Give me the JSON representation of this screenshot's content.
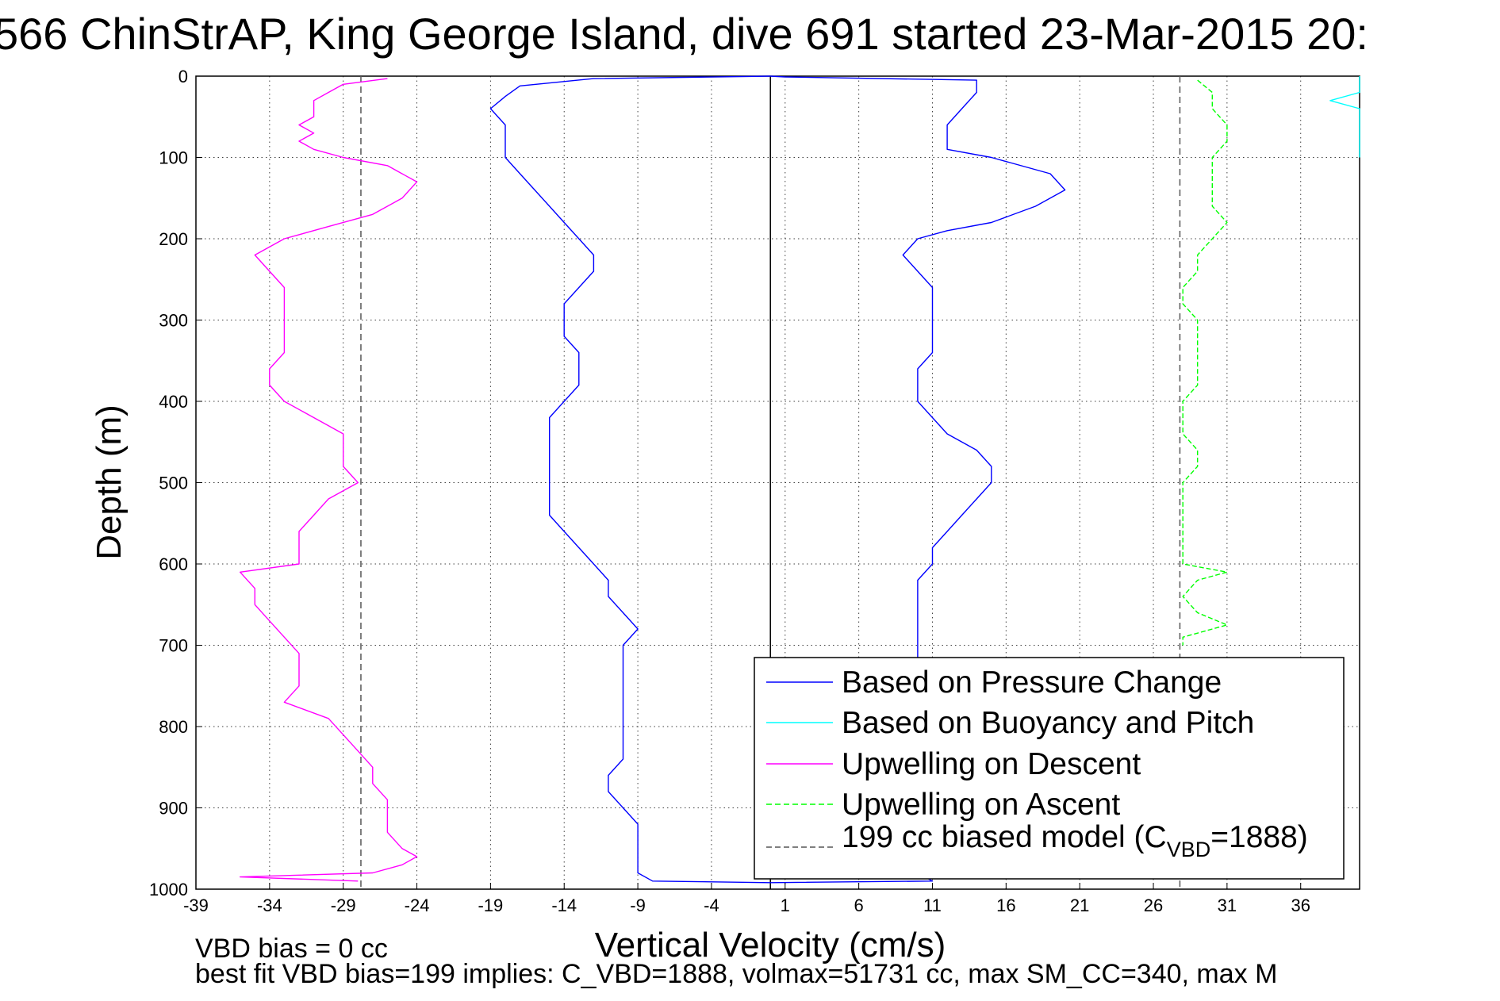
{
  "title": "566 ChinStrAP, King George Island, dive 691 started 23-Mar-2015 20:",
  "xlabel": "Vertical Velocity (cm/s)",
  "ylabel": "Depth (m)",
  "footer": {
    "line1": "VBD bias = 0 cc",
    "line2": "best fit VBD bias=199 implies: C_VBD=1888, volmax=51731 cc, max SM_CC=340, max M"
  },
  "legend": {
    "placement": "lower-right",
    "entries": [
      {
        "key": "pressure",
        "label": "Based on Pressure Change",
        "color": "#0000ff",
        "dash": "solid"
      },
      {
        "key": "buoyancy",
        "label": "Based on Buoyancy and Pitch",
        "color": "#00ffff",
        "dash": "solid"
      },
      {
        "key": "descent",
        "label": "Upwelling on Descent",
        "color": "#ff00ff",
        "dash": "solid"
      },
      {
        "key": "ascent",
        "label": "Upwelling on Ascent",
        "color": "#00ff00",
        "dash": "dashed"
      },
      {
        "key": "model",
        "label_main": "199 cc biased model (C",
        "label_sub": "VBD",
        "label_tail": "=1888)",
        "color": "#555555",
        "dash": "dashed"
      }
    ]
  },
  "chart_data": {
    "type": "line",
    "title": "566 ChinStrAP, King George Island, dive 691 started 23-Mar-2015 20:",
    "xlabel": "Vertical Velocity (cm/s)",
    "ylabel": "Depth (m)",
    "xlim": [
      -39,
      40
    ],
    "ylim": [
      1000,
      0
    ],
    "y_reversed": true,
    "grid": true,
    "x_ticks": [
      -39,
      -34,
      -29,
      -24,
      -19,
      -14,
      -9,
      -4,
      1,
      6,
      11,
      16,
      21,
      26,
      31,
      36
    ],
    "y_ticks": [
      0,
      100,
      200,
      300,
      400,
      500,
      600,
      700,
      800,
      900,
      1000
    ],
    "reference_lines": [
      {
        "x": 0,
        "color": "#000000",
        "style": "solid"
      },
      {
        "x": -27.8,
        "color": "#555555",
        "style": "dashed"
      },
      {
        "x": 27.8,
        "color": "#555555",
        "style": "dashed"
      }
    ],
    "series": [
      {
        "name": "Based on Pressure Change",
        "segment": "descent",
        "color": "#0000ff",
        "points": [
          [
            0,
            0
          ],
          [
            -12,
            3
          ],
          [
            -17,
            12
          ],
          [
            -18,
            25
          ],
          [
            -19,
            40
          ],
          [
            -18,
            60
          ],
          [
            -18,
            80
          ],
          [
            -18,
            100
          ],
          [
            -17,
            120
          ],
          [
            -16,
            140
          ],
          [
            -15,
            160
          ],
          [
            -14,
            180
          ],
          [
            -13,
            200
          ],
          [
            -12,
            220
          ],
          [
            -12,
            240
          ],
          [
            -13,
            260
          ],
          [
            -14,
            280
          ],
          [
            -14,
            300
          ],
          [
            -14,
            320
          ],
          [
            -13,
            340
          ],
          [
            -13,
            360
          ],
          [
            -13,
            380
          ],
          [
            -14,
            400
          ],
          [
            -15,
            420
          ],
          [
            -15,
            440
          ],
          [
            -15,
            460
          ],
          [
            -15,
            480
          ],
          [
            -15,
            500
          ],
          [
            -15,
            520
          ],
          [
            -15,
            540
          ],
          [
            -14,
            560
          ],
          [
            -13,
            580
          ],
          [
            -12,
            600
          ],
          [
            -11,
            620
          ],
          [
            -11,
            640
          ],
          [
            -10,
            660
          ],
          [
            -9,
            680
          ],
          [
            -10,
            700
          ],
          [
            -10,
            720
          ],
          [
            -10,
            740
          ],
          [
            -10,
            760
          ],
          [
            -10,
            780
          ],
          [
            -10,
            800
          ],
          [
            -10,
            820
          ],
          [
            -10,
            840
          ],
          [
            -11,
            860
          ],
          [
            -11,
            880
          ],
          [
            -10,
            900
          ],
          [
            -9,
            920
          ],
          [
            -9,
            940
          ],
          [
            -9,
            960
          ],
          [
            -9,
            980
          ],
          [
            -8,
            990
          ],
          [
            0,
            992
          ]
        ]
      },
      {
        "name": "Based on Pressure Change",
        "segment": "ascent",
        "color": "#0000ff",
        "points": [
          [
            0,
            992
          ],
          [
            11,
            990
          ],
          [
            10,
            980
          ],
          [
            10,
            960
          ],
          [
            10,
            940
          ],
          [
            10,
            920
          ],
          [
            10,
            900
          ],
          [
            10,
            880
          ],
          [
            10,
            860
          ],
          [
            10,
            840
          ],
          [
            10,
            820
          ],
          [
            10,
            800
          ],
          [
            10,
            780
          ],
          [
            10,
            760
          ],
          [
            10,
            740
          ],
          [
            10,
            720
          ],
          [
            10,
            700
          ],
          [
            10,
            680
          ],
          [
            10,
            660
          ],
          [
            10,
            640
          ],
          [
            10,
            620
          ],
          [
            11,
            600
          ],
          [
            11,
            580
          ],
          [
            12,
            560
          ],
          [
            13,
            540
          ],
          [
            14,
            520
          ],
          [
            15,
            500
          ],
          [
            15,
            480
          ],
          [
            14,
            460
          ],
          [
            12,
            440
          ],
          [
            11,
            420
          ],
          [
            10,
            400
          ],
          [
            10,
            380
          ],
          [
            10,
            360
          ],
          [
            11,
            340
          ],
          [
            11,
            320
          ],
          [
            11,
            300
          ],
          [
            11,
            280
          ],
          [
            11,
            260
          ],
          [
            10,
            240
          ],
          [
            9,
            220
          ],
          [
            10,
            200
          ],
          [
            12,
            190
          ],
          [
            15,
            180
          ],
          [
            18,
            160
          ],
          [
            20,
            140
          ],
          [
            19,
            120
          ],
          [
            15,
            100
          ],
          [
            12,
            90
          ],
          [
            12,
            80
          ],
          [
            12,
            60
          ],
          [
            13,
            40
          ],
          [
            14,
            20
          ],
          [
            14,
            5
          ],
          [
            1,
            1
          ],
          [
            0,
            0
          ]
        ]
      },
      {
        "name": "Upwelling on Descent",
        "color": "#ff00ff",
        "points": [
          [
            -26,
            3
          ],
          [
            -29,
            10
          ],
          [
            -30,
            20
          ],
          [
            -31,
            30
          ],
          [
            -31,
            40
          ],
          [
            -31,
            50
          ],
          [
            -32,
            60
          ],
          [
            -31,
            70
          ],
          [
            -32,
            80
          ],
          [
            -31,
            90
          ],
          [
            -29,
            100
          ],
          [
            -26,
            110
          ],
          [
            -24,
            130
          ],
          [
            -25,
            150
          ],
          [
            -27,
            170
          ],
          [
            -30,
            185
          ],
          [
            -33,
            200
          ],
          [
            -35,
            220
          ],
          [
            -34,
            240
          ],
          [
            -33,
            260
          ],
          [
            -33,
            280
          ],
          [
            -33,
            300
          ],
          [
            -33,
            320
          ],
          [
            -33,
            340
          ],
          [
            -34,
            360
          ],
          [
            -34,
            380
          ],
          [
            -33,
            400
          ],
          [
            -31,
            420
          ],
          [
            -29,
            440
          ],
          [
            -29,
            460
          ],
          [
            -29,
            480
          ],
          [
            -28,
            500
          ],
          [
            -30,
            520
          ],
          [
            -31,
            540
          ],
          [
            -32,
            560
          ],
          [
            -32,
            580
          ],
          [
            -32,
            600
          ],
          [
            -36,
            610
          ],
          [
            -35,
            630
          ],
          [
            -35,
            650
          ],
          [
            -34,
            670
          ],
          [
            -33,
            690
          ],
          [
            -32,
            710
          ],
          [
            -32,
            730
          ],
          [
            -32,
            750
          ],
          [
            -33,
            770
          ],
          [
            -30,
            790
          ],
          [
            -29,
            810
          ],
          [
            -28,
            830
          ],
          [
            -27,
            850
          ],
          [
            -27,
            870
          ],
          [
            -26,
            890
          ],
          [
            -26,
            910
          ],
          [
            -26,
            930
          ],
          [
            -25,
            950
          ],
          [
            -24,
            960
          ],
          [
            -25,
            970
          ],
          [
            -27,
            980
          ],
          [
            -36,
            985
          ],
          [
            -28,
            990
          ]
        ]
      },
      {
        "name": "Upwelling on Ascent",
        "color": "#00ff00",
        "points": [
          [
            29,
            5
          ],
          [
            30,
            20
          ],
          [
            30,
            40
          ],
          [
            31,
            60
          ],
          [
            31,
            80
          ],
          [
            30,
            100
          ],
          [
            30,
            120
          ],
          [
            30,
            140
          ],
          [
            30,
            160
          ],
          [
            31,
            180
          ],
          [
            30,
            200
          ],
          [
            29,
            220
          ],
          [
            29,
            240
          ],
          [
            28,
            260
          ],
          [
            28,
            280
          ],
          [
            29,
            300
          ],
          [
            29,
            320
          ],
          [
            29,
            340
          ],
          [
            29,
            360
          ],
          [
            29,
            380
          ],
          [
            28,
            400
          ],
          [
            28,
            420
          ],
          [
            28,
            440
          ],
          [
            29,
            460
          ],
          [
            29,
            480
          ],
          [
            28,
            500
          ],
          [
            28,
            520
          ],
          [
            28,
            540
          ],
          [
            28,
            560
          ],
          [
            28,
            580
          ],
          [
            28,
            600
          ],
          [
            31,
            610
          ],
          [
            29,
            620
          ],
          [
            28,
            640
          ],
          [
            29,
            660
          ],
          [
            31,
            675
          ],
          [
            28,
            690
          ],
          [
            28,
            700
          ]
        ]
      },
      {
        "name": "Based on Buoyancy and Pitch",
        "color": "#00ffff",
        "points": [
          [
            40,
            0
          ],
          [
            40,
            10
          ],
          [
            40,
            20
          ],
          [
            38,
            30
          ],
          [
            40,
            40
          ],
          [
            40,
            50
          ],
          [
            40,
            70
          ],
          [
            40,
            100
          ]
        ]
      }
    ]
  }
}
